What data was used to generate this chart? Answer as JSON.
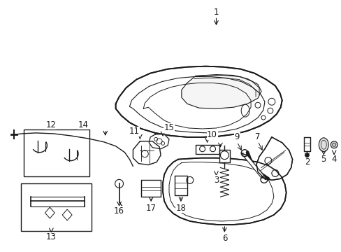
{
  "bg_color": "#ffffff",
  "line_color": "#1a1a1a",
  "fig_width": 4.89,
  "fig_height": 3.6,
  "dpi": 100,
  "label_fs": 8.5
}
